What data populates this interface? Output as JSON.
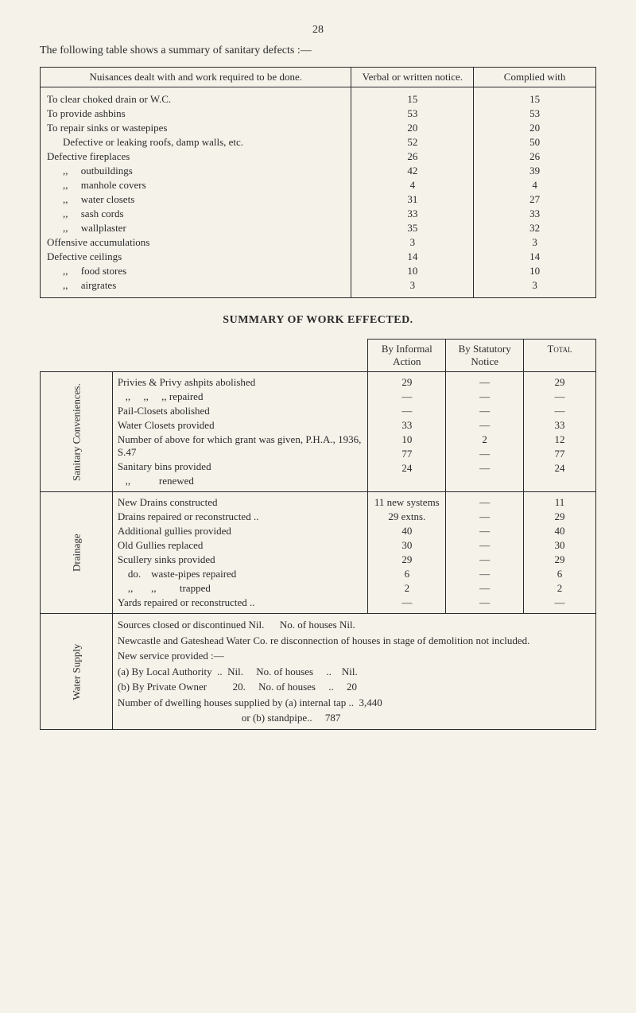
{
  "page_number": "28",
  "intro": "The following table shows a summary of sanitary defects :—",
  "table1": {
    "headers": {
      "col1": "Nuisances dealt with and work required to be done.",
      "col2": "Verbal or written notice.",
      "col3": "Complied with"
    },
    "rows": [
      {
        "label": "To clear choked drain or W.C.",
        "v1": "15",
        "v2": "15",
        "indent": 0
      },
      {
        "label": "To provide ashbins",
        "v1": "53",
        "v2": "53",
        "indent": 0
      },
      {
        "label": "To repair sinks or wastepipes",
        "v1": "20",
        "v2": "20",
        "indent": 0
      },
      {
        "label": "Defective or leaking roofs, damp walls, etc.",
        "v1": "52",
        "v2": "50",
        "indent": 1
      },
      {
        "label": "Defective fireplaces",
        "v1": "26",
        "v2": "26",
        "indent": 0
      },
      {
        "label": ",,     outbuildings",
        "v1": "42",
        "v2": "39",
        "indent": 1
      },
      {
        "label": ",,     manhole covers",
        "v1": "4",
        "v2": "4",
        "indent": 1
      },
      {
        "label": ",,     water closets",
        "v1": "31",
        "v2": "27",
        "indent": 1
      },
      {
        "label": ",,     sash cords",
        "v1": "33",
        "v2": "33",
        "indent": 1
      },
      {
        "label": ",,     wallplaster",
        "v1": "35",
        "v2": "32",
        "indent": 1
      },
      {
        "label": "Offensive accumulations",
        "v1": "3",
        "v2": "3",
        "indent": 0
      },
      {
        "label": "Defective ceilings",
        "v1": "14",
        "v2": "14",
        "indent": 0
      },
      {
        "label": ",,     food stores",
        "v1": "10",
        "v2": "10",
        "indent": 1
      },
      {
        "label": ",,     airgrates",
        "v1": "3",
        "v2": "3",
        "indent": 1
      }
    ]
  },
  "section_title": "SUMMARY OF WORK EFFECTED.",
  "table2": {
    "headers": {
      "informal": "By Informal Action",
      "statutory": "By Statutory Notice",
      "total": "Total"
    },
    "groups": [
      {
        "category": "Sanitary Conveniences.",
        "rows": [
          {
            "label": "Privies & Privy ashpits abolished",
            "v1": "29",
            "v2": "—",
            "v3": "29"
          },
          {
            "label": "   ,,     ,,     ,, repaired",
            "v1": "—",
            "v2": "—",
            "v3": "—"
          },
          {
            "label": "Pail-Closets abolished",
            "v1": "—",
            "v2": "—",
            "v3": "—"
          },
          {
            "label": "Water Closets provided",
            "v1": "33",
            "v2": "—",
            "v3": "33"
          },
          {
            "label": "Number of above for which grant was given, P.H.A., 1936, S.47",
            "v1": "10",
            "v2": "2",
            "v3": "12"
          },
          {
            "label": "Sanitary bins provided",
            "v1": "77",
            "v2": "—",
            "v3": "77"
          },
          {
            "label": "   ,,           renewed",
            "v1": "24",
            "v2": "—",
            "v3": "24"
          }
        ]
      },
      {
        "category": "Drainage",
        "rows": [
          {
            "label": "New Drains constructed",
            "v1": "11 new systems",
            "v2": "—",
            "v3": "11"
          },
          {
            "label": "Drains repaired or reconstructed ..",
            "v1": "29 extns.",
            "v2": "—",
            "v3": "29"
          },
          {
            "label": "Additional gullies provided",
            "v1": "40",
            "v2": "—",
            "v3": "40"
          },
          {
            "label": "Old Gullies replaced",
            "v1": "30",
            "v2": "—",
            "v3": "30"
          },
          {
            "label": "Scullery sinks provided",
            "v1": "29",
            "v2": "—",
            "v3": "29"
          },
          {
            "label": "    do.    waste-pipes repaired",
            "v1": "6",
            "v2": "—",
            "v3": "6"
          },
          {
            "label": "    ,,       ,,         trapped",
            "v1": "2",
            "v2": "—",
            "v3": "2"
          },
          {
            "label": "Yards repaired or reconstructed ..",
            "v1": "—",
            "v2": "—",
            "v3": "—"
          }
        ]
      }
    ],
    "water_supply": {
      "category": "Water Supply",
      "line1": "Sources closed or discontinued Nil.      No. of houses Nil.",
      "line2": "Newcastle and Gateshead Water Co. re disconnection of houses in stage of demolition not included.",
      "line3": "New service provided :—",
      "line4a": "(a) By Local Authority  ..  Nil.     No. of houses     ..    Nil.",
      "line4b": "(b) By Private Owner          20.     No. of houses     ..     20",
      "line5": "Number of dwelling houses supplied by (a) internal tap ..  3,440",
      "line6": "                                                or (b) standpipe..     787"
    }
  }
}
